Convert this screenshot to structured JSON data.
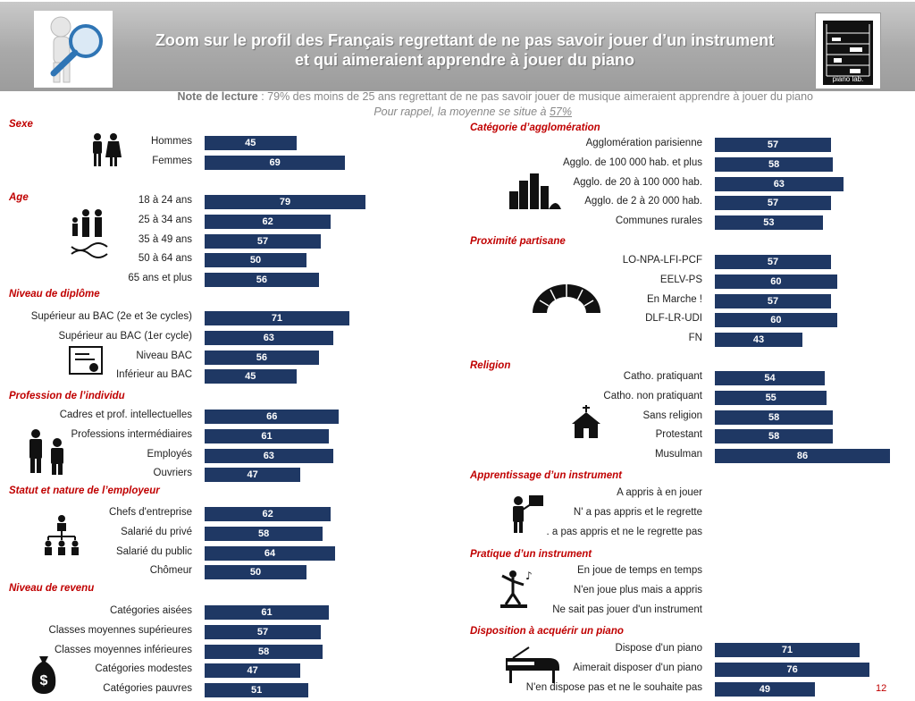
{
  "header": {
    "title_line1": "Zoom sur le profil des Français regrettant de ne pas savoir jouer d’un instrument",
    "title_line2": "et qui aimeraient apprendre à jouer du piano",
    "logo_text": "piano lab."
  },
  "note": {
    "label": "Note de lecture",
    "text": " : 79% des moins de 25 ans regrettant de ne pas savoir jouer de musique aimeraient apprendre à jouer du piano",
    "reminder_text": "Pour rappel, la moyenne se situe à ",
    "reminder_value": "57%"
  },
  "colors": {
    "bar": "#1f3864",
    "section_title": "#c00000",
    "banner": "#a9a9a9"
  },
  "page_number": "12",
  "chart_data": {
    "type": "bar",
    "orientation": "horizontal",
    "grid": false,
    "unit": "%",
    "groups": [
      {
        "title": "Sexe",
        "icon": "man-woman-icon",
        "categories": [
          "Hommes",
          "Femmes"
        ],
        "values": [
          45,
          69
        ]
      },
      {
        "title": "Age",
        "icon": "family-dna-icon",
        "categories": [
          "18 à 24 ans",
          "25 à 34 ans",
          "35 à 49 ans",
          "50 à 64 ans",
          "65 ans et plus"
        ],
        "values": [
          79,
          62,
          57,
          50,
          56
        ]
      },
      {
        "title": "Niveau de diplôme",
        "icon": "diploma-icon",
        "categories": [
          "Supérieur  au BAC (2e et 3e cycles)",
          "Supérieur  au BAC (1er cycle)",
          "Niveau BAC",
          "Inférieur au BAC"
        ],
        "values": [
          71,
          63,
          56,
          45
        ]
      },
      {
        "title": "Profession de l’individu",
        "icon": "workers-icon",
        "categories": [
          "Cadres et prof. intellectuelles",
          "Professions intermédiaires",
          "Employés",
          "Ouvriers"
        ],
        "values": [
          66,
          61,
          63,
          47
        ]
      },
      {
        "title": "Statut et nature de l’employeur",
        "icon": "org-chart-icon",
        "categories": [
          "Chefs d'entreprise",
          "Salarié du privé",
          "Salarié du public",
          "Chômeur"
        ],
        "values": [
          62,
          58,
          64,
          50
        ]
      },
      {
        "title": "Niveau de revenu",
        "icon": "money-bag-icon",
        "categories": [
          "Catégories aisées",
          "Classes moyennes supérieures",
          "Classes moyennes inférieures",
          "Catégories modestes",
          "Catégories pauvres"
        ],
        "values": [
          61,
          57,
          58,
          47,
          51
        ]
      },
      {
        "title": "Catégorie d’agglomération",
        "icon": "city-icon",
        "categories": [
          "Agglomération parisienne",
          "Agglo. de 100 000 hab. et plus",
          "Agglo. de 20 à 100 000 hab.",
          "Agglo. de 2 à 20 000 hab.",
          "Communes rurales"
        ],
        "values": [
          57,
          58,
          63,
          57,
          53
        ]
      },
      {
        "title": "Proximité partisane",
        "icon": "hemicycle-icon",
        "categories": [
          "LO-NPA-LFI-PCF",
          "EELV-PS",
          "En Marche !",
          "DLF-LR-UDI",
          "FN"
        ],
        "values": [
          57,
          60,
          57,
          60,
          43
        ]
      },
      {
        "title": "Religion",
        "icon": "church-icon",
        "categories": [
          "Catho. pratiquant",
          "Catho. non pratiquant",
          "Sans religion",
          "Protestant",
          "Musulman"
        ],
        "values": [
          54,
          55,
          58,
          58,
          86
        ]
      },
      {
        "title": "Apprentissage d’un instrument",
        "icon": "teacher-icon",
        "categories": [
          "A appris à en jouer",
          "N' a pas appris et le regrette",
          ". a pas appris et ne le regrette pas"
        ],
        "values": [
          null,
          null,
          null
        ]
      },
      {
        "title": "Pratique d’un instrument",
        "icon": "dancer-icon",
        "categories": [
          "En joue de temps en temps",
          "N'en joue plus  mais a appris",
          "Ne sait pas jouer d'un instrument"
        ],
        "values": [
          null,
          null,
          null
        ]
      },
      {
        "title": "Disposition à acquérir un piano",
        "icon": "piano-icon",
        "categories": [
          "Dispose d'un piano",
          "Aimerait disposer d'un piano",
          "N'en  dispose pas et ne le souhaite pas"
        ],
        "values": [
          71,
          76,
          49
        ]
      }
    ]
  }
}
